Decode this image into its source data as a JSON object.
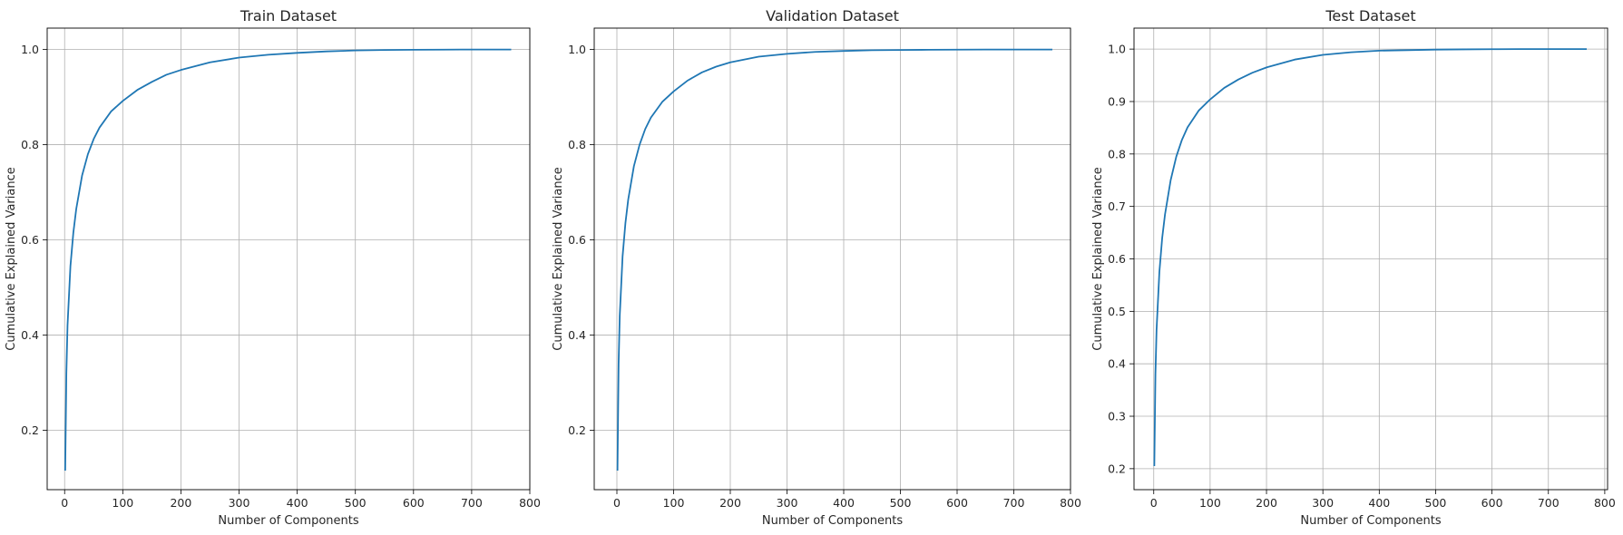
{
  "chart_data": [
    {
      "type": "line",
      "title": "Train Dataset",
      "xlabel": "Number of Components",
      "ylabel": "Cumulative Explained Variance",
      "xlim": [
        -30,
        800
      ],
      "ylim": [
        0.075,
        1.045
      ],
      "xticks": [
        0,
        100,
        200,
        300,
        400,
        500,
        600,
        700,
        800
      ],
      "yticks": [
        0.2,
        0.4,
        0.6,
        0.8,
        1.0
      ],
      "ytick_labels": [
        "0.2",
        "0.4",
        "0.6",
        "0.8",
        "1.0"
      ],
      "grid": true,
      "line_color": "#1f77b4",
      "series": [
        {
          "x": [
            1,
            3,
            5,
            10,
            15,
            20,
            30,
            40,
            50,
            60,
            80,
            100,
            125,
            150,
            175,
            200,
            250,
            300,
            350,
            400,
            450,
            500,
            550,
            600,
            650,
            700,
            768
          ],
          "y": [
            0.115,
            0.32,
            0.42,
            0.545,
            0.615,
            0.665,
            0.735,
            0.78,
            0.812,
            0.836,
            0.87,
            0.892,
            0.915,
            0.932,
            0.947,
            0.957,
            0.973,
            0.983,
            0.989,
            0.993,
            0.996,
            0.998,
            0.999,
            0.9995,
            0.9998,
            1.0,
            1.0
          ]
        }
      ]
    },
    {
      "type": "line",
      "title": "Validation Dataset",
      "xlabel": "Number of Components",
      "ylabel": "Cumulative Explained Variance",
      "xlim": [
        -40,
        800
      ],
      "ylim": [
        0.075,
        1.045
      ],
      "xticks": [
        0,
        100,
        200,
        300,
        400,
        500,
        600,
        700,
        800
      ],
      "yticks": [
        0.2,
        0.4,
        0.6,
        0.8,
        1.0
      ],
      "ytick_labels": [
        "0.2",
        "0.4",
        "0.6",
        "0.8",
        "1.0"
      ],
      "grid": true,
      "line_color": "#1f77b4",
      "series": [
        {
          "x": [
            1,
            3,
            5,
            10,
            15,
            20,
            30,
            40,
            50,
            60,
            80,
            100,
            125,
            150,
            175,
            200,
            250,
            300,
            350,
            400,
            450,
            500,
            550,
            600,
            650,
            700,
            768
          ],
          "y": [
            0.115,
            0.34,
            0.44,
            0.565,
            0.635,
            0.685,
            0.755,
            0.8,
            0.833,
            0.857,
            0.89,
            0.912,
            0.935,
            0.952,
            0.964,
            0.973,
            0.985,
            0.991,
            0.995,
            0.997,
            0.9985,
            0.999,
            0.9995,
            0.9998,
            1.0,
            1.0,
            1.0
          ]
        }
      ]
    },
    {
      "type": "line",
      "title": "Test Dataset",
      "xlabel": "Number of Components",
      "ylabel": "Cumulative Explained Variance",
      "xlim": [
        -35,
        805
      ],
      "ylim": [
        0.16,
        1.04
      ],
      "xticks": [
        0,
        100,
        200,
        300,
        400,
        500,
        600,
        700,
        800
      ],
      "yticks": [
        0.2,
        0.3,
        0.4,
        0.5,
        0.6,
        0.7,
        0.8,
        0.9,
        1.0
      ],
      "ytick_labels": [
        "0.2",
        "0.3",
        "0.4",
        "0.5",
        "0.6",
        "0.7",
        "0.8",
        "0.9",
        "1.0"
      ],
      "grid": true,
      "line_color": "#1f77b4",
      "series": [
        {
          "x": [
            1,
            3,
            5,
            10,
            15,
            20,
            30,
            40,
            50,
            60,
            80,
            100,
            125,
            150,
            175,
            200,
            250,
            300,
            350,
            400,
            450,
            500,
            550,
            600,
            650,
            700,
            768
          ],
          "y": [
            0.205,
            0.38,
            0.465,
            0.575,
            0.64,
            0.685,
            0.75,
            0.795,
            0.827,
            0.851,
            0.883,
            0.904,
            0.926,
            0.942,
            0.955,
            0.965,
            0.98,
            0.989,
            0.994,
            0.997,
            0.998,
            0.999,
            0.9995,
            0.9998,
            1.0,
            1.0,
            1.0
          ]
        }
      ]
    }
  ]
}
